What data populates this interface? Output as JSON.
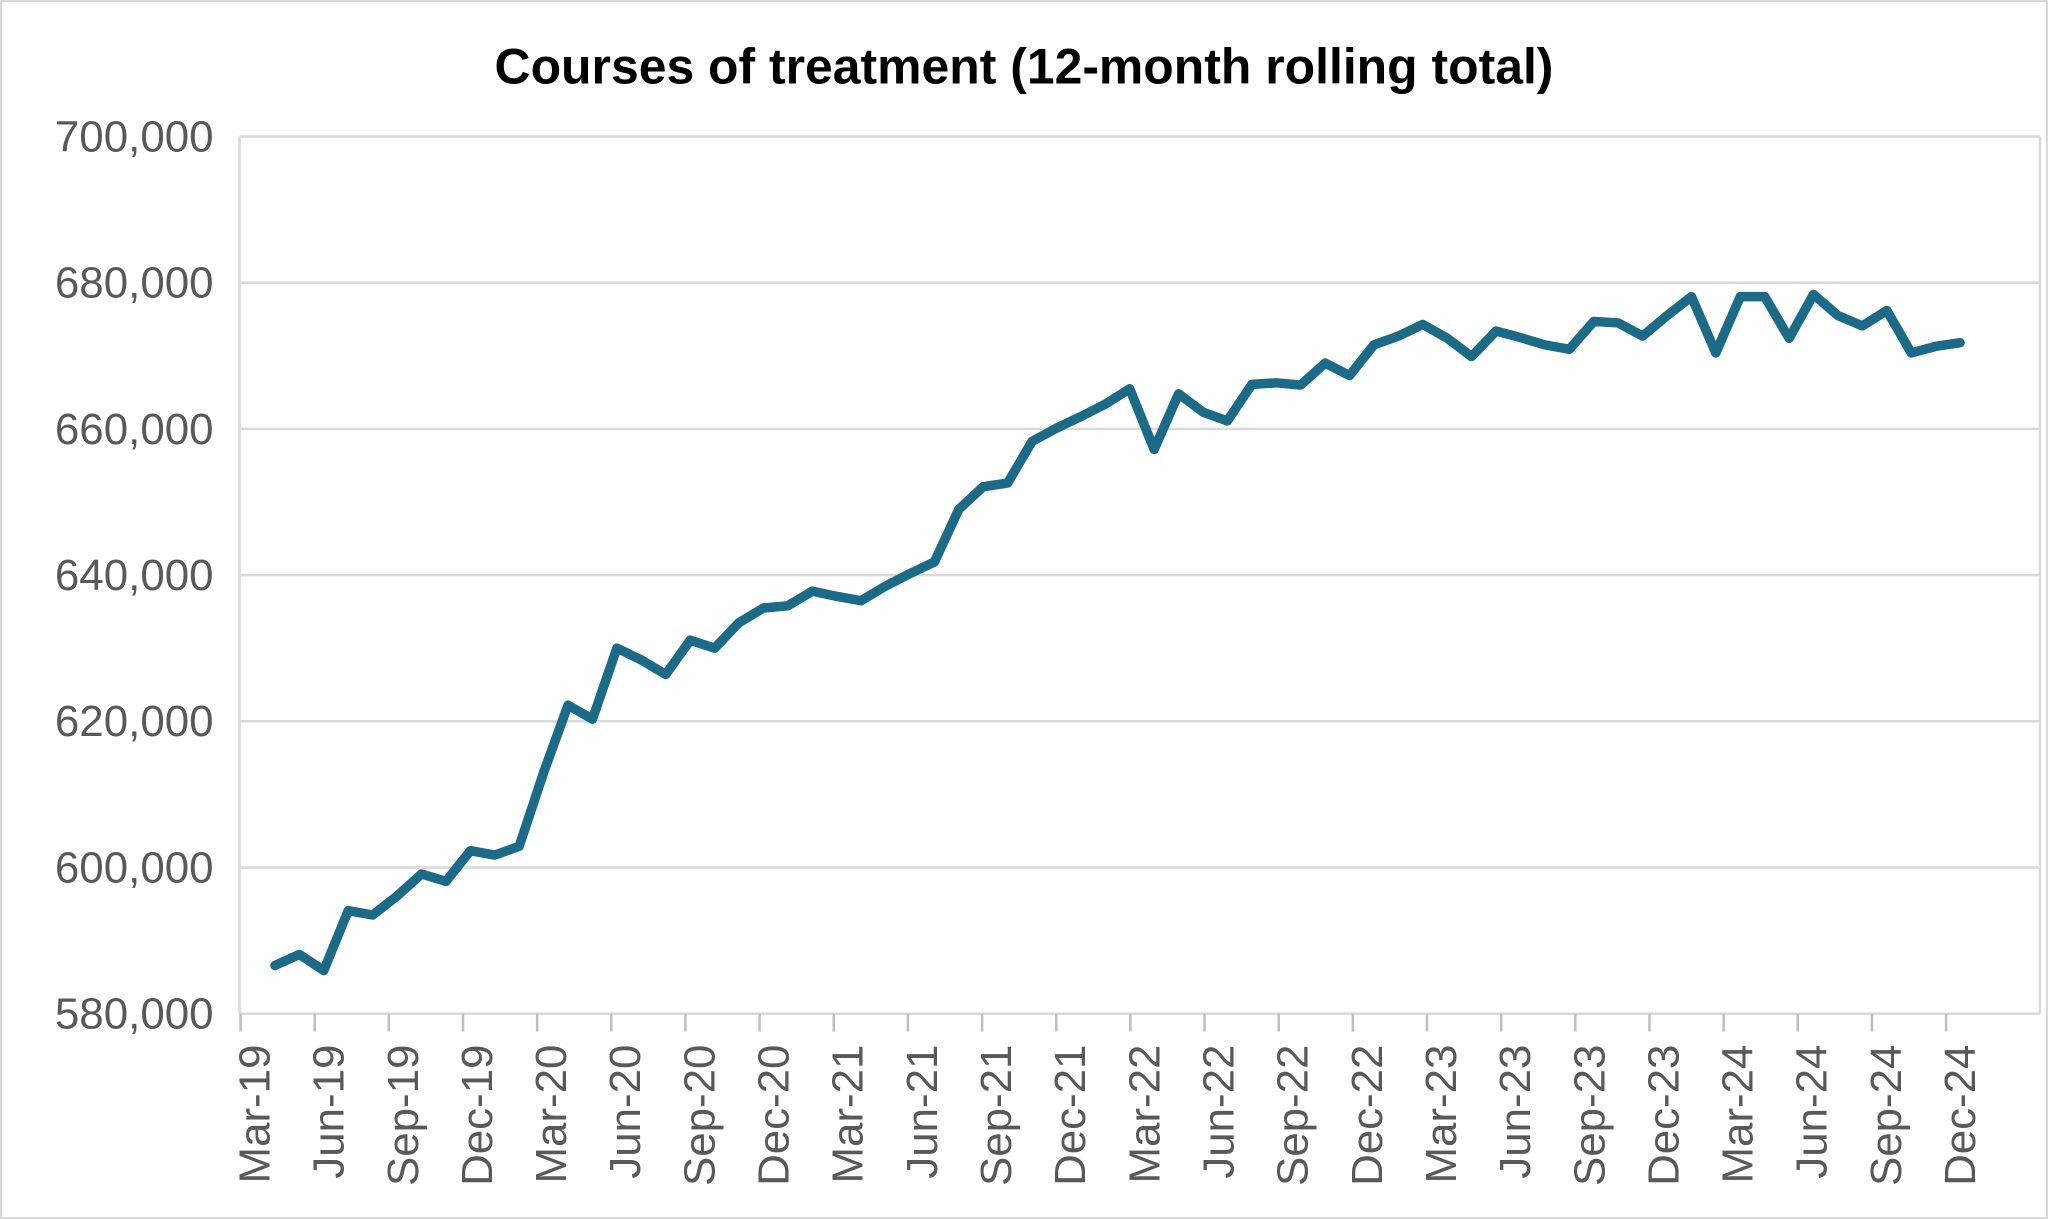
{
  "chart_data": {
    "type": "line",
    "title": "Courses of treatment (12-month rolling total)",
    "xlabel": "",
    "ylabel": "",
    "ylim": [
      580000,
      700000
    ],
    "grid": "horizontal",
    "legend": "none",
    "colors": {
      "line": "#1b6a88",
      "gridline": "#d9d9d9",
      "axis": "#bfbfbf",
      "tick_label": "#595959",
      "title": "#000000",
      "background": "#ffffff",
      "frame_border": "#d9d9d9"
    },
    "yticks": [
      {
        "value": 580000,
        "label": "580,000"
      },
      {
        "value": 600000,
        "label": "600,000"
      },
      {
        "value": 620000,
        "label": "620,000"
      },
      {
        "value": 640000,
        "label": "640,000"
      },
      {
        "value": 660000,
        "label": "660,000"
      },
      {
        "value": 680000,
        "label": "680,000"
      },
      {
        "value": 700000,
        "label": "700,000"
      }
    ],
    "xtick_labels": [
      "Mar-19",
      "Jun-19",
      "Sep-19",
      "Dec-19",
      "Mar-20",
      "Jun-20",
      "Sep-20",
      "Dec-20",
      "Mar-21",
      "Jun-21",
      "Sep-21",
      "Dec-21",
      "Mar-22",
      "Jun-22",
      "Sep-22",
      "Dec-22",
      "Mar-23",
      "Jun-23",
      "Sep-23",
      "Dec-23",
      "Mar-24",
      "Jun-24",
      "Sep-24",
      "Dec-24"
    ],
    "x": [
      "Mar-19",
      "Apr-19",
      "May-19",
      "Jun-19",
      "Jul-19",
      "Aug-19",
      "Sep-19",
      "Oct-19",
      "Nov-19",
      "Dec-19",
      "Jan-20",
      "Feb-20",
      "Mar-20",
      "Apr-20",
      "May-20",
      "Jun-20",
      "Jul-20",
      "Aug-20",
      "Sep-20",
      "Oct-20",
      "Nov-20",
      "Dec-20",
      "Jan-21",
      "Feb-21",
      "Mar-21",
      "Apr-21",
      "May-21",
      "Jun-21",
      "Jul-21",
      "Aug-21",
      "Sep-21",
      "Oct-21",
      "Nov-21",
      "Dec-21",
      "Jan-22",
      "Feb-22",
      "Mar-22",
      "Apr-22",
      "May-22",
      "Jun-22",
      "Jul-22",
      "Aug-22",
      "Sep-22",
      "Oct-22",
      "Nov-22",
      "Dec-22",
      "Jan-23",
      "Feb-23",
      "Mar-23",
      "Apr-23",
      "May-23",
      "Jun-23",
      "Jul-23",
      "Aug-23",
      "Sep-23",
      "Oct-23",
      "Nov-23",
      "Dec-23",
      "Jan-24",
      "Feb-24",
      "Mar-24",
      "Apr-24",
      "May-24",
      "Jun-24",
      "Jul-24",
      "Aug-24",
      "Sep-24",
      "Oct-24",
      "Nov-24",
      "Dec-24"
    ],
    "series": [
      {
        "name": "Courses of treatment (12-month rolling total)",
        "values": [
          586600,
          588100,
          585900,
          594100,
          593500,
          596100,
          599100,
          598100,
          602300,
          601700,
          602900,
          613000,
          622200,
          620300,
          630000,
          628400,
          626400,
          631100,
          630000,
          633500,
          635500,
          635800,
          637800,
          637100,
          636500,
          638500,
          640200,
          641800,
          649000,
          652100,
          652600,
          658300,
          660100,
          661700,
          663400,
          665500,
          657200,
          664800,
          662300,
          661100,
          666100,
          666300,
          666000,
          669000,
          667300,
          671500,
          672700,
          674300,
          672400,
          669900,
          673400,
          672500,
          671500,
          670900,
          674700,
          674500,
          672700,
          675500,
          678100,
          670400,
          678100,
          678100,
          672400,
          678400,
          675500,
          674100,
          676200,
          670400,
          671300,
          671800
        ]
      }
    ]
  }
}
